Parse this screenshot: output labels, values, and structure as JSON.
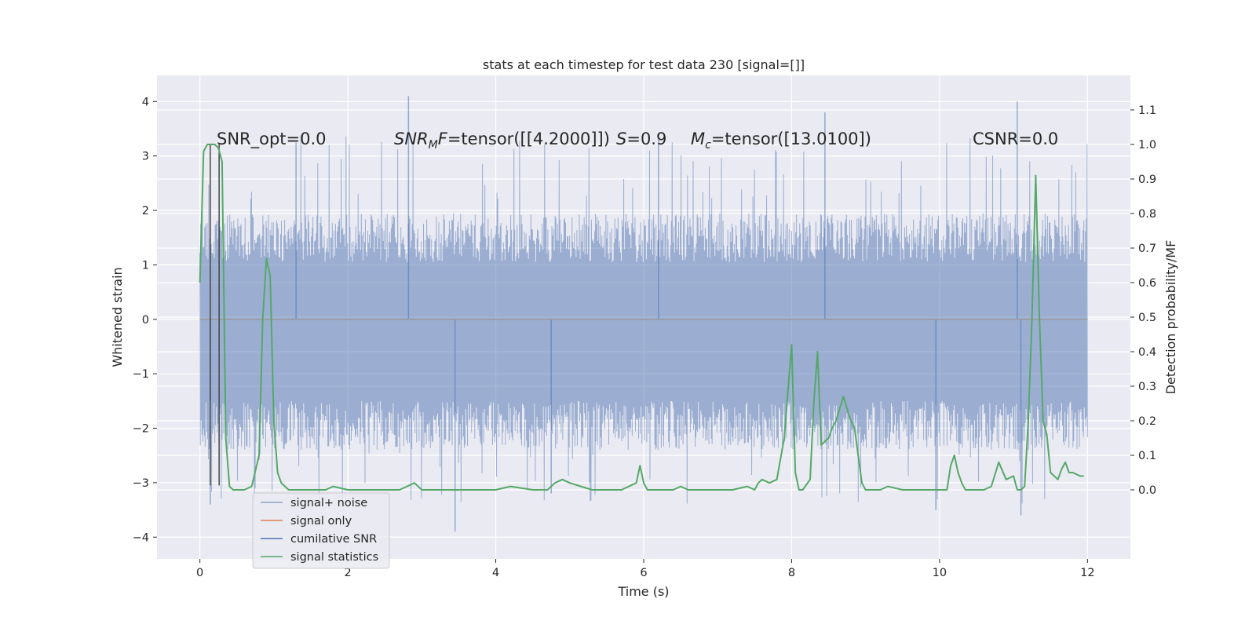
{
  "chart_data": {
    "type": "line",
    "title": "stats at each timestep for test data 230 [signal=[]]",
    "xlabel": "Time (s)",
    "ylabel_left": "Whitened strain",
    "ylabel_right": "Detection probability/MF",
    "xlim": [
      -0.58,
      12.58
    ],
    "ylim_left": [
      -4.4,
      4.48
    ],
    "ylim_right": [
      -0.2,
      1.2
    ],
    "xticks": [
      0,
      2,
      4,
      6,
      8,
      10,
      12
    ],
    "xtick_labels": [
      "0",
      "2",
      "4",
      "6",
      "8",
      "10",
      "12"
    ],
    "yticks_left": [
      -4,
      -3,
      -2,
      -1,
      0,
      1,
      2,
      3,
      4
    ],
    "ytick_labels_left": [
      "−4",
      "−3",
      "−2",
      "−1",
      "0",
      "1",
      "2",
      "3",
      "4"
    ],
    "yticks_right": [
      0.0,
      0.1,
      0.2,
      0.3,
      0.4,
      0.5,
      0.6,
      0.7,
      0.8,
      0.9,
      1.0,
      1.1
    ],
    "ytick_labels_right": [
      "0.0",
      "0.1",
      "0.2",
      "0.3",
      "0.4",
      "0.5",
      "0.6",
      "0.7",
      "0.8",
      "0.9",
      "1.0",
      "1.1"
    ],
    "annotations": {
      "snr_opt": "SNR_opt=0.0",
      "snr_mf_prefix": "SNR",
      "snr_mf_sub": "M",
      "snr_mf_suffix": "F",
      "snr_mf_value": "=tensor([[4.2000]])",
      "s_label": "S",
      "s_value": "=0.9",
      "mc_label": "M",
      "mc_sub": "c",
      "mc_value": "=tensor([13.0100])",
      "csnr": "CSNR=0.0"
    },
    "legend_location": "lower-left",
    "series": [
      {
        "name": "signal+ noise",
        "color": "#4c72b0",
        "axis": "left",
        "style": "noise",
        "x_range": [
          0,
          12
        ],
        "typical_range": [
          -1.8,
          1.35
        ],
        "peak_max": 4.1,
        "peak_min": -3.9,
        "seed": 230
      },
      {
        "name": "signal only",
        "color": "#dd8452",
        "axis": "left",
        "x": [
          0,
          12
        ],
        "y": [
          0,
          0
        ]
      },
      {
        "name": "cumilative SNR",
        "color": "#4c72b0",
        "axis": "left",
        "note": "not drawn in visible area"
      },
      {
        "name": "signal statistics",
        "color": "#55a868",
        "axis": "right",
        "x": [
          0.0,
          0.05,
          0.1,
          0.15,
          0.2,
          0.25,
          0.3,
          0.35,
          0.4,
          0.45,
          0.5,
          0.6,
          0.7,
          0.8,
          0.85,
          0.9,
          0.95,
          1.0,
          1.05,
          1.1,
          1.15,
          1.2,
          1.3,
          1.5,
          1.7,
          1.8,
          2.0,
          2.3,
          2.5,
          2.7,
          2.8,
          2.9,
          3.0,
          3.2,
          3.5,
          4.0,
          4.2,
          4.5,
          4.7,
          4.8,
          4.9,
          5.0,
          5.3,
          5.7,
          5.9,
          5.95,
          6.0,
          6.05,
          6.2,
          6.4,
          6.5,
          6.6,
          6.8,
          7.2,
          7.4,
          7.5,
          7.55,
          7.6,
          7.7,
          7.8,
          7.9,
          8.0,
          8.05,
          8.1,
          8.15,
          8.25,
          8.3,
          8.35,
          8.4,
          8.5,
          8.55,
          8.6,
          8.7,
          8.8,
          8.85,
          8.9,
          8.95,
          9.0,
          9.1,
          9.2,
          9.3,
          9.5,
          9.7,
          9.9,
          10.1,
          10.15,
          10.2,
          10.25,
          10.3,
          10.35,
          10.4,
          10.5,
          10.6,
          10.7,
          10.8,
          10.9,
          11.0,
          11.05,
          11.1,
          11.15,
          11.2,
          11.25,
          11.3,
          11.35,
          11.4,
          11.45,
          11.5,
          11.55,
          11.6,
          11.65,
          11.7,
          11.75,
          11.8,
          11.9,
          11.95
        ],
        "y": [
          0.6,
          0.98,
          1.0,
          1.0,
          1.0,
          0.99,
          0.95,
          0.15,
          0.01,
          0.0,
          0.0,
          0.0,
          0.01,
          0.1,
          0.5,
          0.67,
          0.62,
          0.2,
          0.05,
          0.02,
          0.01,
          0.0,
          0.0,
          0.0,
          0.0,
          0.01,
          0.0,
          0.0,
          0.0,
          0.0,
          0.01,
          0.02,
          0.0,
          0.0,
          0.0,
          0.0,
          0.01,
          0.0,
          0.0,
          0.02,
          0.03,
          0.02,
          0.0,
          0.0,
          0.02,
          0.07,
          0.02,
          0.0,
          0.0,
          0.0,
          0.01,
          0.0,
          0.0,
          0.0,
          0.01,
          0.0,
          0.02,
          0.03,
          0.02,
          0.03,
          0.15,
          0.42,
          0.05,
          0.0,
          0.0,
          0.03,
          0.25,
          0.4,
          0.13,
          0.15,
          0.18,
          0.2,
          0.27,
          0.2,
          0.18,
          0.1,
          0.02,
          0.0,
          0.0,
          0.0,
          0.01,
          0.0,
          0.0,
          0.0,
          0.0,
          0.07,
          0.1,
          0.05,
          0.02,
          0.0,
          0.0,
          0.0,
          0.0,
          0.01,
          0.08,
          0.03,
          0.04,
          0.0,
          0.0,
          0.01,
          0.2,
          0.5,
          0.91,
          0.5,
          0.2,
          0.16,
          0.05,
          0.04,
          0.03,
          0.06,
          0.08,
          0.05,
          0.05,
          0.04,
          0.04
        ],
        "x_cut": 11.9
      }
    ],
    "legend": [
      "signal+ noise",
      "signal only",
      "cumilative SNR",
      "signal statistics"
    ]
  },
  "colors": {
    "plot_bg": "#eaeaf2",
    "grid": "#ffffff",
    "noise": "#4c72b0",
    "signal_only": "#dd8452",
    "stats": "#55a868",
    "dark_line": "#444444"
  }
}
